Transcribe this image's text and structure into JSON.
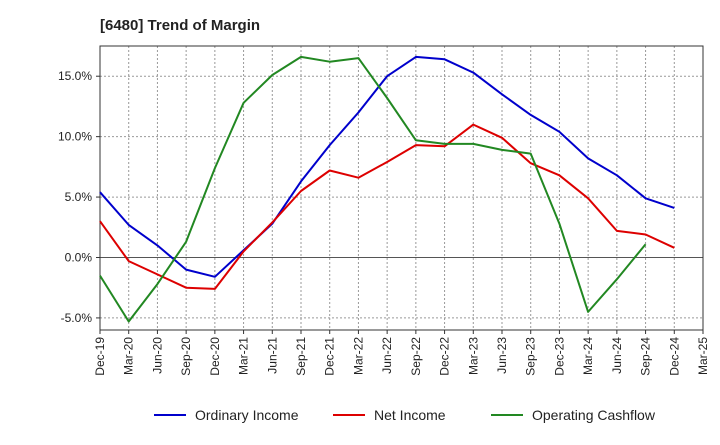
{
  "chart_data": {
    "type": "line",
    "title": "[6480]  Trend of Margin",
    "xlabel": "",
    "ylabel": "",
    "ylim": [
      -6.0,
      17.5
    ],
    "y_ticks": [
      {
        "value": -5.0,
        "label": "-5.0%"
      },
      {
        "value": 0.0,
        "label": "0.0%"
      },
      {
        "value": 5.0,
        "label": "5.0%"
      },
      {
        "value": 10.0,
        "label": "10.0%"
      },
      {
        "value": 15.0,
        "label": "15.0%"
      }
    ],
    "x_tick_labels": [
      "Dec-19",
      "Mar-20",
      "Jun-20",
      "Sep-20",
      "Dec-20",
      "Mar-21",
      "Jun-21",
      "Sep-21",
      "Dec-21",
      "Mar-22",
      "Jun-22",
      "Sep-22",
      "Dec-22",
      "Mar-23",
      "Jun-23",
      "Sep-23",
      "Dec-23",
      "Mar-24",
      "Jun-24",
      "Sep-24",
      "Dec-24",
      "Mar-25"
    ],
    "grid": true,
    "legend_position": "bottom",
    "series": [
      {
        "name": "Ordinary Income",
        "color": "#0000cc",
        "values": [
          5.4,
          2.7,
          1.0,
          -1.0,
          -1.6,
          0.6,
          2.8,
          6.3,
          9.3,
          12.0,
          15.0,
          16.6,
          16.4,
          15.3,
          13.5,
          11.8,
          10.4,
          8.2,
          6.8,
          4.9,
          4.1,
          null
        ]
      },
      {
        "name": "Net Income",
        "color": "#dd0000",
        "values": [
          3.0,
          -0.3,
          -1.4,
          -2.5,
          -2.6,
          0.5,
          2.9,
          5.5,
          7.2,
          6.6,
          7.9,
          9.3,
          9.2,
          11.0,
          9.9,
          7.8,
          6.8,
          4.9,
          2.2,
          1.9,
          0.8,
          null
        ]
      },
      {
        "name": "Operating Cashflow",
        "color": "#228822",
        "values": [
          -1.5,
          -5.3,
          -2.2,
          1.3,
          7.4,
          12.8,
          15.1,
          16.6,
          16.2,
          16.5,
          13.2,
          9.7,
          9.4,
          9.4,
          8.9,
          8.6,
          2.8,
          -4.5,
          -1.8,
          1.1,
          null,
          null
        ]
      }
    ]
  }
}
